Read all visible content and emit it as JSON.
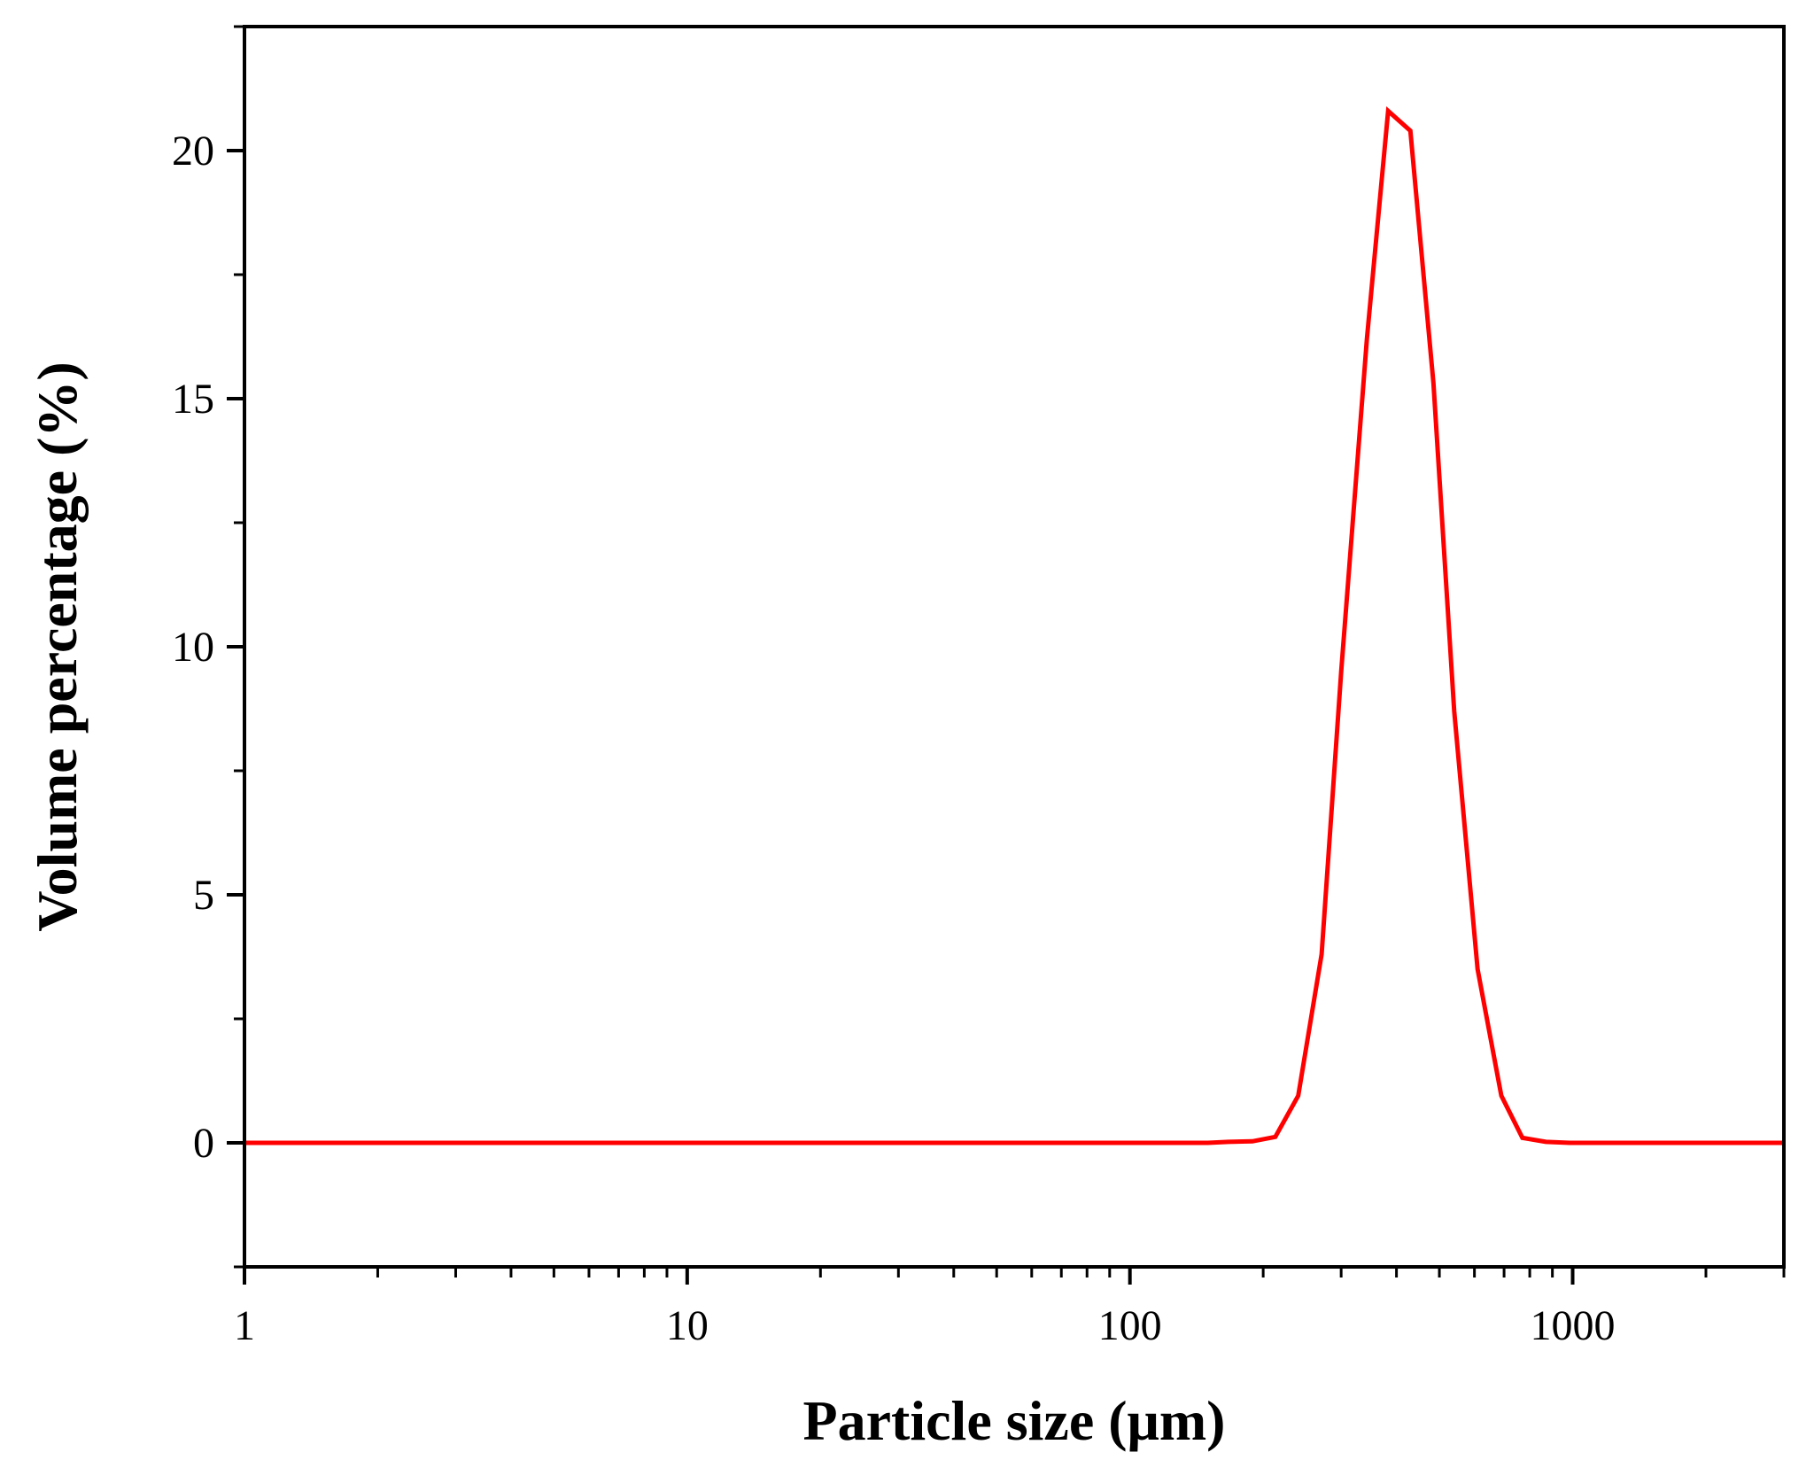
{
  "chart_data": {
    "type": "line",
    "xlabel": "Particle size (μm)",
    "ylabel": "Volume percentage (%)",
    "xscale": "log",
    "xlim": [
      1,
      3000
    ],
    "ylim": [
      -2.5,
      22.5
    ],
    "x_ticks": [
      {
        "value": 1,
        "label": "1"
      },
      {
        "value": 10,
        "label": "10"
      },
      {
        "value": 100,
        "label": "100"
      },
      {
        "value": 1000,
        "label": "1000"
      }
    ],
    "y_ticks": [
      {
        "value": 0,
        "label": "0"
      },
      {
        "value": 5,
        "label": "5"
      },
      {
        "value": 10,
        "label": "10"
      },
      {
        "value": 15,
        "label": "15"
      },
      {
        "value": 20,
        "label": "20"
      }
    ],
    "y_minor_ticks": [
      -2.5,
      2.5,
      7.5,
      12.5,
      17.5,
      22.5
    ],
    "grid": false,
    "legend": "none",
    "series": [
      {
        "color": "#ff0000",
        "x": [
          1,
          10,
          100,
          150,
          167,
          189,
          213,
          240,
          271,
          300,
          343,
          383,
          430,
          485,
          540,
          610,
          690,
          770,
          870,
          985,
          1110,
          1250,
          3000
        ],
        "y": [
          0,
          0,
          0,
          0,
          0.02,
          0.03,
          0.12,
          0.95,
          3.8,
          9.5,
          16.2,
          20.8,
          20.4,
          15.3,
          8.7,
          3.5,
          0.95,
          0.1,
          0.02,
          0,
          0,
          0,
          0
        ]
      }
    ]
  }
}
